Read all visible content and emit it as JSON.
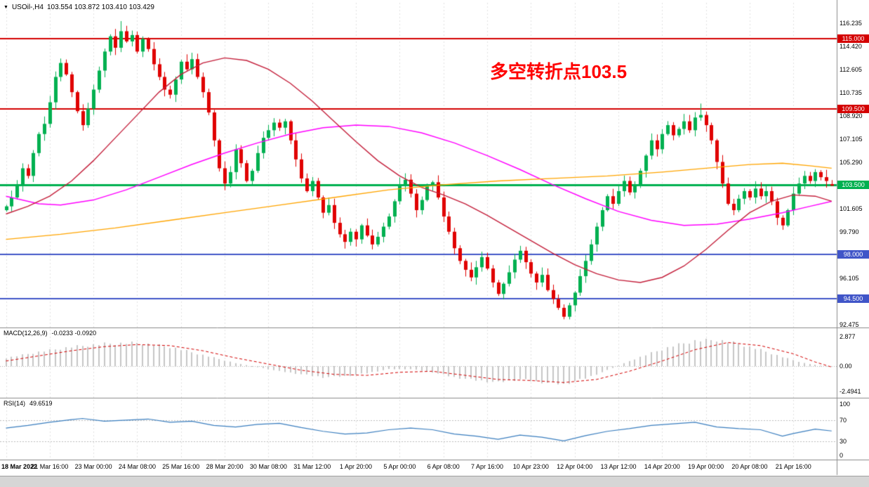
{
  "header": {
    "symbol": "USOil-,H4",
    "quote": "103.554 103.872 103.410 103.429"
  },
  "icons": {
    "dropdown_arrow": "▼"
  },
  "annotation": {
    "text": "多空转折点103.5",
    "color": "#ff0000"
  },
  "chart_data": {
    "type": "candlestick",
    "symbol": "USOil-",
    "timeframe": "H4",
    "last_quote": {
      "open": 103.554,
      "high": 103.872,
      "low": 103.41,
      "close": 103.429
    },
    "colors": {
      "up": "#00b050",
      "down": "#e00000",
      "grid": "#e1e1e1",
      "separator": "#8c8c8c",
      "macd_hist": "#c6c6c6",
      "macd_signal": "#d40000",
      "rsi_line": "#3a7ebf",
      "level_dotted": "#bdbdbd",
      "axis_text": "#000000"
    },
    "price_axis": {
      "ticks": [
        {
          "label": "116.235",
          "price": 116.235
        },
        {
          "label": "114.420",
          "price": 114.42
        },
        {
          "label": "112.605",
          "price": 112.605
        },
        {
          "label": "110.735",
          "price": 110.735
        },
        {
          "label": "108.920",
          "price": 108.92
        },
        {
          "label": "107.105",
          "price": 107.105
        },
        {
          "label": "105.290",
          "price": 105.29
        },
        {
          "label": "101.605",
          "price": 101.605
        },
        {
          "label": "99.790",
          "price": 99.79
        },
        {
          "label": "96.105",
          "price": 96.105
        },
        {
          "label": "92.475",
          "price": 92.475
        }
      ]
    },
    "levels": [
      {
        "label": "115.000",
        "price": 115.0,
        "color": "#d40000",
        "width": 2
      },
      {
        "label": "109.500",
        "price": 109.5,
        "color": "#d40000",
        "width": 2
      },
      {
        "label": "103.500",
        "price": 103.5,
        "color": "#00b050",
        "width": 3
      },
      {
        "label": "98.000",
        "price": 98.0,
        "color": "#4055c8",
        "width": 2
      },
      {
        "label": "94.500",
        "price": 94.5,
        "color": "#4055c8",
        "width": 2
      }
    ],
    "time_axis": {
      "candles_per_label": 8,
      "labels": [
        "18 Mar 2022",
        "21 Mar 16:00",
        "23 Mar 00:00",
        "24 Mar 08:00",
        "25 Mar 16:00",
        "28 Mar 20:00",
        "30 Mar 08:00",
        "31 Mar 12:00",
        "1 Apr 20:00",
        "5 Apr 00:00",
        "6 Apr 08:00",
        "7 Apr 16:00",
        "10 Apr 23:00",
        "12 Apr 04:00",
        "13 Apr 12:00",
        "14 Apr 20:00",
        "19 Apr 00:00",
        "20 Apr 08:00",
        "21 Apr 16:00"
      ]
    },
    "candles": {
      "first_open": 101.5,
      "closes": [
        101.8,
        102.5,
        103.4,
        104.8,
        104.2,
        106.0,
        107.5,
        108.3,
        110.0,
        112.0,
        113.1,
        112.2,
        110.8,
        109.3,
        108.2,
        109.5,
        111.0,
        112.5,
        114.0,
        115.2,
        114.3,
        115.6,
        114.8,
        115.3,
        114.0,
        115.0,
        114.2,
        113.0,
        112.0,
        111.0,
        110.6,
        111.8,
        113.2,
        112.6,
        113.4,
        112.0,
        110.8,
        109.2,
        107.0,
        104.8,
        103.6,
        104.5,
        106.3,
        105.2,
        103.8,
        104.6,
        106.0,
        107.2,
        107.8,
        108.4,
        108.0,
        108.5,
        107.0,
        105.5,
        104.0,
        103.0,
        103.8,
        102.5,
        101.3,
        101.9,
        100.5,
        99.6,
        99.0,
        99.8,
        99.2,
        100.3,
        99.5,
        98.8,
        99.4,
        100.2,
        101.0,
        102.2,
        103.5,
        103.9,
        102.8,
        101.5,
        102.3,
        103.4,
        103.7,
        102.5,
        101.0,
        99.8,
        98.5,
        97.5,
        96.8,
        96.2,
        97.0,
        97.8,
        96.9,
        95.8,
        94.9,
        95.7,
        96.6,
        97.6,
        98.3,
        97.4,
        96.5,
        95.8,
        96.4,
        95.2,
        94.5,
        93.8,
        93.1,
        94.0,
        95.0,
        96.3,
        97.5,
        98.8,
        100.2,
        101.5,
        102.6,
        102.0,
        103.0,
        103.8,
        102.9,
        103.5,
        104.6,
        105.8,
        107.0,
        106.3,
        107.5,
        108.2,
        107.4,
        107.9,
        108.5,
        107.8,
        108.8,
        109.0,
        108.2,
        107.0,
        105.3,
        103.6,
        102.0,
        101.5,
        102.4,
        103.0,
        102.5,
        103.2,
        102.6,
        103.0,
        102.2,
        100.9,
        100.3,
        101.5,
        102.8,
        103.6,
        104.2,
        103.8,
        104.5,
        104.1,
        103.8,
        103.429
      ],
      "overrides": {
        "21": {
          "h": 116.4
        },
        "102": {
          "l": 92.9
        },
        "127": {
          "h": 109.9
        },
        "142": {
          "l": 99.95
        },
        "151": {
          "o": 103.554,
          "h": 103.872,
          "l": 103.41,
          "c": 103.429
        }
      }
    },
    "moving_averages": [
      {
        "name": "ma-magenta",
        "color": "#ff00ff",
        "width": 1.5,
        "points": [
          [
            0,
            102.6
          ],
          [
            6,
            102.0
          ],
          [
            10,
            101.9
          ],
          [
            16,
            102.3
          ],
          [
            22,
            103.1
          ],
          [
            28,
            104.1
          ],
          [
            34,
            105.1
          ],
          [
            40,
            106.0
          ],
          [
            46,
            106.8
          ],
          [
            52,
            107.5
          ],
          [
            58,
            108.0
          ],
          [
            64,
            108.2
          ],
          [
            70,
            108.1
          ],
          [
            76,
            107.6
          ],
          [
            82,
            106.8
          ],
          [
            88,
            105.8
          ],
          [
            94,
            104.7
          ],
          [
            100,
            103.5
          ],
          [
            106,
            102.4
          ],
          [
            112,
            101.4
          ],
          [
            118,
            100.7
          ],
          [
            124,
            100.3
          ],
          [
            130,
            100.4
          ],
          [
            136,
            100.8
          ],
          [
            142,
            101.3
          ],
          [
            147,
            101.8
          ],
          [
            151,
            102.2
          ]
        ]
      },
      {
        "name": "ma-crimson",
        "color": "#c41e3a",
        "width": 1.4,
        "points": [
          [
            0,
            101.2
          ],
          [
            4,
            101.8
          ],
          [
            8,
            102.6
          ],
          [
            12,
            103.8
          ],
          [
            16,
            105.4
          ],
          [
            20,
            107.2
          ],
          [
            24,
            109.0
          ],
          [
            28,
            110.8
          ],
          [
            32,
            112.2
          ],
          [
            36,
            113.1
          ],
          [
            40,
            113.5
          ],
          [
            44,
            113.3
          ],
          [
            48,
            112.6
          ],
          [
            52,
            111.5
          ],
          [
            56,
            110.1
          ],
          [
            60,
            108.5
          ],
          [
            64,
            106.9
          ],
          [
            68,
            105.4
          ],
          [
            72,
            104.2
          ],
          [
            76,
            103.3
          ],
          [
            80,
            102.7
          ],
          [
            84,
            102.0
          ],
          [
            88,
            101.1
          ],
          [
            92,
            100.1
          ],
          [
            96,
            99.1
          ],
          [
            100,
            98.1
          ],
          [
            104,
            97.2
          ],
          [
            108,
            96.5
          ],
          [
            112,
            96.0
          ],
          [
            116,
            95.8
          ],
          [
            120,
            96.2
          ],
          [
            124,
            97.1
          ],
          [
            128,
            98.4
          ],
          [
            132,
            99.9
          ],
          [
            136,
            101.3
          ],
          [
            140,
            102.2
          ],
          [
            144,
            102.7
          ],
          [
            148,
            102.6
          ],
          [
            151,
            102.2
          ]
        ]
      },
      {
        "name": "ma-orange",
        "color": "#ffa500",
        "width": 1.3,
        "points": [
          [
            0,
            99.2
          ],
          [
            10,
            99.6
          ],
          [
            20,
            100.1
          ],
          [
            30,
            100.7
          ],
          [
            40,
            101.3
          ],
          [
            50,
            101.9
          ],
          [
            60,
            102.5
          ],
          [
            70,
            103.1
          ],
          [
            80,
            103.5
          ],
          [
            90,
            103.8
          ],
          [
            100,
            104.0
          ],
          [
            110,
            104.2
          ],
          [
            120,
            104.5
          ],
          [
            128,
            104.8
          ],
          [
            136,
            105.1
          ],
          [
            142,
            105.2
          ],
          [
            147,
            105.0
          ],
          [
            151,
            104.8
          ]
        ]
      }
    ],
    "macd": {
      "label": "MACD(12,26,9)",
      "values": "-0.0233 -0.0920",
      "ticks": [
        {
          "label": "2.877",
          "v": 2.877
        },
        {
          "label": "0.00",
          "v": 0
        },
        {
          "label": "-2.4941",
          "v": -2.4941
        }
      ],
      "histogram": [
        [
          0,
          0.8
        ],
        [
          6,
          1.4
        ],
        [
          12,
          1.9
        ],
        [
          18,
          2.2
        ],
        [
          24,
          2.3
        ],
        [
          30,
          1.9
        ],
        [
          36,
          1.1
        ],
        [
          42,
          0.3
        ],
        [
          46,
          -0.1
        ],
        [
          50,
          -0.5
        ],
        [
          54,
          -0.8
        ],
        [
          58,
          -1.1
        ],
        [
          62,
          -1.0
        ],
        [
          66,
          -0.7
        ],
        [
          70,
          -0.3
        ],
        [
          74,
          -0.3
        ],
        [
          78,
          -0.6
        ],
        [
          82,
          -1.1
        ],
        [
          86,
          -1.4
        ],
        [
          90,
          -1.6
        ],
        [
          94,
          -1.3
        ],
        [
          98,
          -1.6
        ],
        [
          102,
          -1.8
        ],
        [
          106,
          -1.2
        ],
        [
          110,
          -0.4
        ],
        [
          114,
          0.5
        ],
        [
          118,
          1.3
        ],
        [
          122,
          2.0
        ],
        [
          126,
          2.5
        ],
        [
          130,
          2.6
        ],
        [
          134,
          2.2
        ],
        [
          138,
          1.6
        ],
        [
          142,
          0.9
        ],
        [
          146,
          0.3
        ],
        [
          149,
          0.05
        ],
        [
          151,
          -0.02
        ]
      ],
      "signal": [
        [
          0,
          0.5
        ],
        [
          6,
          1.0
        ],
        [
          12,
          1.5
        ],
        [
          18,
          1.9
        ],
        [
          24,
          2.1
        ],
        [
          30,
          2.0
        ],
        [
          36,
          1.5
        ],
        [
          42,
          0.8
        ],
        [
          48,
          0.2
        ],
        [
          54,
          -0.4
        ],
        [
          60,
          -0.8
        ],
        [
          66,
          -0.9
        ],
        [
          72,
          -0.6
        ],
        [
          78,
          -0.5
        ],
        [
          84,
          -0.9
        ],
        [
          90,
          -1.3
        ],
        [
          96,
          -1.4
        ],
        [
          102,
          -1.6
        ],
        [
          108,
          -1.3
        ],
        [
          114,
          -0.5
        ],
        [
          120,
          0.5
        ],
        [
          126,
          1.6
        ],
        [
          132,
          2.3
        ],
        [
          138,
          2.0
        ],
        [
          144,
          1.2
        ],
        [
          148,
          0.4
        ],
        [
          151,
          -0.09
        ]
      ]
    },
    "rsi": {
      "label": "RSI(14)",
      "value": "49.6519",
      "ticks": [
        {
          "label": "100",
          "v": 100
        },
        {
          "label": "70",
          "v": 70
        },
        {
          "label": "30",
          "v": 30
        },
        {
          "label": "0",
          "v": 0
        }
      ],
      "levels": [
        70,
        30
      ],
      "line": [
        [
          0,
          55
        ],
        [
          4,
          60
        ],
        [
          8,
          66
        ],
        [
          12,
          71
        ],
        [
          14,
          73
        ],
        [
          18,
          68
        ],
        [
          22,
          70
        ],
        [
          26,
          72
        ],
        [
          30,
          66
        ],
        [
          34,
          68
        ],
        [
          38,
          60
        ],
        [
          42,
          57
        ],
        [
          46,
          62
        ],
        [
          50,
          64
        ],
        [
          54,
          56
        ],
        [
          58,
          49
        ],
        [
          62,
          44
        ],
        [
          66,
          46
        ],
        [
          70,
          52
        ],
        [
          74,
          55
        ],
        [
          78,
          52
        ],
        [
          82,
          44
        ],
        [
          86,
          40
        ],
        [
          90,
          34
        ],
        [
          94,
          42
        ],
        [
          98,
          38
        ],
        [
          102,
          31
        ],
        [
          106,
          41
        ],
        [
          110,
          49
        ],
        [
          114,
          54
        ],
        [
          118,
          60
        ],
        [
          122,
          63
        ],
        [
          126,
          66
        ],
        [
          130,
          57
        ],
        [
          134,
          54
        ],
        [
          138,
          52
        ],
        [
          142,
          40
        ],
        [
          144,
          45
        ],
        [
          148,
          53
        ],
        [
          151,
          49.65
        ]
      ]
    }
  }
}
